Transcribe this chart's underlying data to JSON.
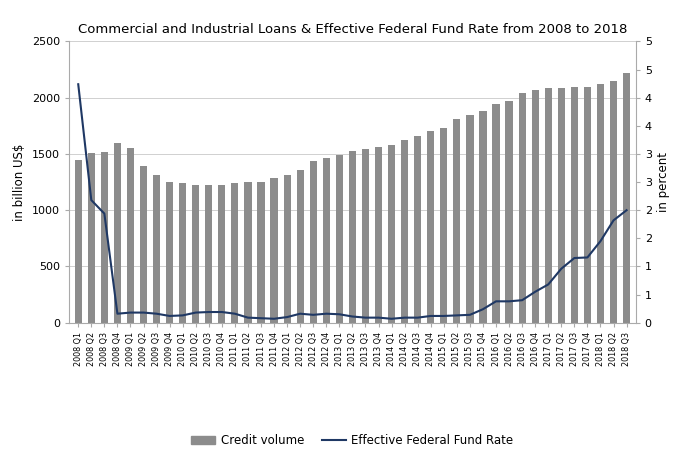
{
  "title": "Commercial and Industrial Loans & Effective Federal Fund Rate from 2008 to 2018",
  "ylabel_left": "in billion US$",
  "ylabel_right": "in percent",
  "bar_color": "#8c8c8c",
  "bar_edgecolor": "#8c8c8c",
  "line_color": "#1f3864",
  "background_color": "#ffffff",
  "ylim_left": [
    0,
    2500
  ],
  "ylim_right": [
    0,
    5
  ],
  "yticks_left": [
    0,
    500,
    1000,
    1500,
    2000,
    2500
  ],
  "yticks_right": [
    0,
    0.5,
    1.0,
    1.5,
    2.0,
    2.5,
    3.0,
    3.5,
    4.0,
    4.5,
    5.0
  ],
  "ytick_labels_right": [
    "0",
    "1",
    "1",
    "2",
    "2",
    "3",
    "3",
    "4",
    "4",
    "5",
    "5"
  ],
  "legend_labels": [
    "Credit volume",
    "Effective Federal Fund Rate"
  ],
  "categories": [
    "2008 Q1",
    "2008 Q2",
    "2008 Q3",
    "2008 Q4",
    "2009 Q1",
    "2009 Q2",
    "2009 Q3",
    "2009 Q4",
    "2010 Q1",
    "2010 Q2",
    "2010 Q3",
    "2010 Q4",
    "2011 Q1",
    "2011 Q2",
    "2011 Q3",
    "2011 Q4",
    "2012 Q1",
    "2012 Q2",
    "2012 Q3",
    "2012 Q4",
    "2013 Q1",
    "2013 Q2",
    "2013 Q3",
    "2013 Q4",
    "2014 Q1",
    "2014 Q2",
    "2014 Q3",
    "2014 Q4",
    "2015 Q1",
    "2015 Q2",
    "2015 Q3",
    "2015 Q4",
    "2016 Q1",
    "2016 Q2",
    "2016 Q3",
    "2016 Q4",
    "2017 Q1",
    "2017 Q2",
    "2017 Q3",
    "2017 Q4",
    "2018 Q1",
    "2018 Q2",
    "2018 Q3"
  ],
  "credit_volume": [
    1450,
    1510,
    1520,
    1595,
    1555,
    1390,
    1310,
    1255,
    1240,
    1225,
    1220,
    1225,
    1240,
    1250,
    1255,
    1290,
    1310,
    1360,
    1435,
    1465,
    1490,
    1525,
    1545,
    1560,
    1580,
    1620,
    1660,
    1705,
    1730,
    1810,
    1850,
    1885,
    1940,
    1970,
    2040,
    2065,
    2085,
    2090,
    2095,
    2095,
    2120,
    2145,
    2220
  ],
  "fed_rate": [
    4.24,
    2.18,
    1.94,
    0.16,
    0.18,
    0.18,
    0.16,
    0.12,
    0.13,
    0.18,
    0.19,
    0.19,
    0.16,
    0.09,
    0.08,
    0.07,
    0.1,
    0.16,
    0.14,
    0.16,
    0.15,
    0.11,
    0.09,
    0.09,
    0.07,
    0.09,
    0.09,
    0.12,
    0.12,
    0.13,
    0.14,
    0.24,
    0.38,
    0.38,
    0.4,
    0.55,
    0.68,
    0.96,
    1.15,
    1.16,
    1.45,
    1.82,
    2.0
  ]
}
